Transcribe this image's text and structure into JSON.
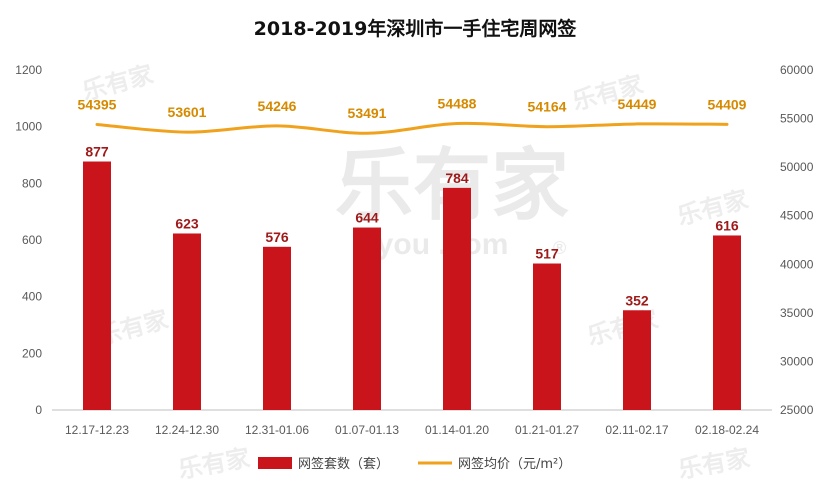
{
  "chart_data": {
    "type": "bar",
    "title": "2018-2019年深圳市一手住宅周网签",
    "categories": [
      "12.17-12.23",
      "12.24-12.30",
      "12.31-01.06",
      "01.07-01.13",
      "01.14-01.20",
      "01.21-01.27",
      "02.11-02.17",
      "02.18-02.24"
    ],
    "series": [
      {
        "name": "网签套数（套）",
        "type": "bar",
        "axis": "left",
        "color": "#c9141c",
        "values": [
          877,
          623,
          576,
          644,
          784,
          517,
          352,
          616
        ]
      },
      {
        "name": "网签均价（元/m²）",
        "type": "line",
        "axis": "right",
        "color": "#f0a21d",
        "values": [
          54395,
          53601,
          54246,
          53491,
          54488,
          54164,
          54449,
          54409
        ]
      }
    ],
    "y_left": {
      "min": 0,
      "max": 1200,
      "step": 200,
      "ticks": [
        "0",
        "200",
        "400",
        "600",
        "800",
        "1000",
        "1200"
      ]
    },
    "y_right": {
      "min": 25000,
      "max": 60000,
      "step": 5000,
      "ticks": [
        "25000",
        "30000",
        "35000",
        "40000",
        "45000",
        "50000",
        "55000",
        "60000"
      ]
    },
    "grid": false,
    "legend_position": "bottom"
  },
  "watermark": {
    "brand": "乐有家",
    "url": "Leyoujia.com",
    "url_short": "eyou .com",
    "mark": "®"
  }
}
